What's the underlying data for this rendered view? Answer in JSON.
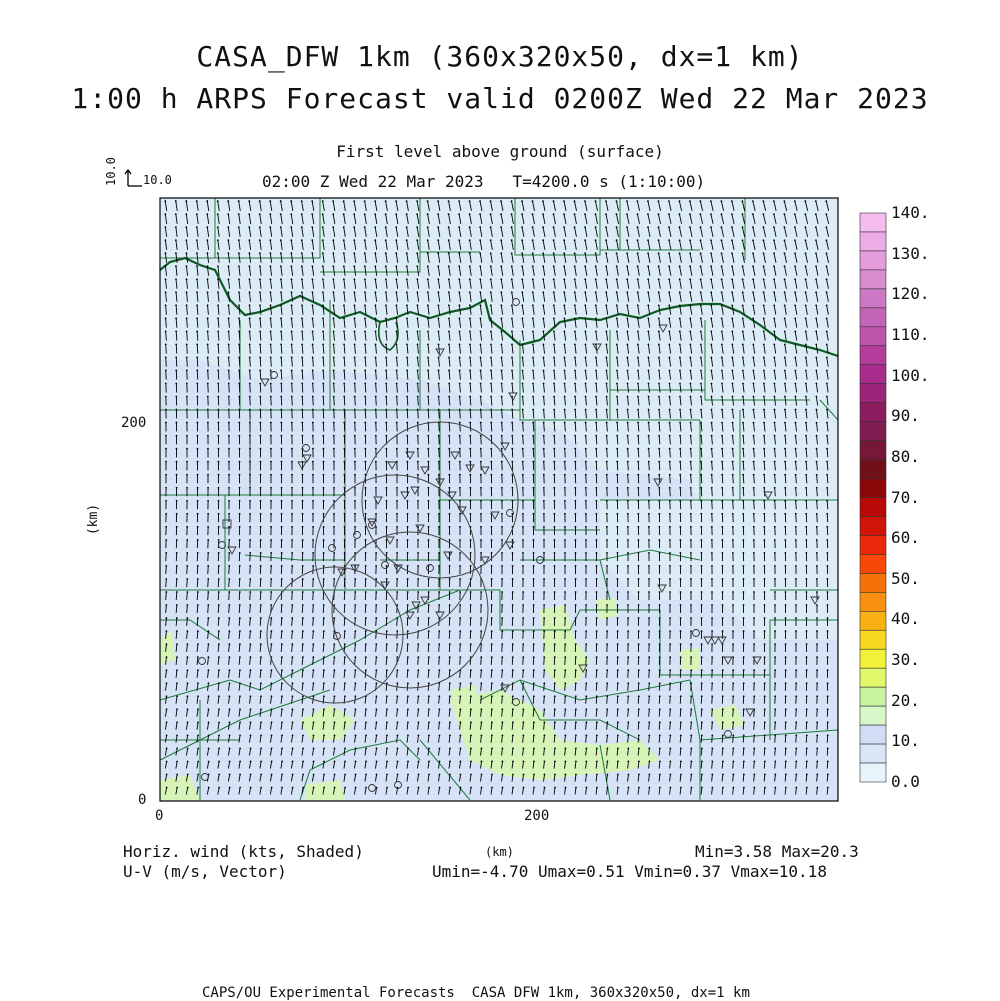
{
  "titles": {
    "line1": "CASA_DFW 1km (360x320x50, dx=1 km)",
    "line2": "1:00 h ARPS Forecast valid 0200Z Wed 22 Mar 2023",
    "level": "First level above ground (surface)",
    "time": "02:00 Z Wed 22 Mar 2023   T=4200.0 s (1:10:00)"
  },
  "reference_vector": {
    "vertical_label": "10.0",
    "horizontal_label": "10.0"
  },
  "axes": {
    "x_unit": "(km)",
    "y_unit": "(km)",
    "x_ticks": [
      "0",
      "200"
    ],
    "y_ticks": [
      "0",
      "200"
    ]
  },
  "footer": {
    "left1": "Horiz. wind (kts, Shaded)",
    "left2": "U-V (m/s, Vector)",
    "minmax": "Min=3.58 Max=20.3",
    "uv": "Umin=-4.70 Umax=0.51 Vmin=0.37 Vmax=10.18",
    "credit": "CAPS/OU Experimental Forecasts  CASA DFW 1km, 360x320x50, dx=1 km"
  },
  "colorbar": {
    "labels": [
      "0.0",
      "10.",
      "20.",
      "30.",
      "40.",
      "50.",
      "60.",
      "70.",
      "80.",
      "90.",
      "100.",
      "110.",
      "120.",
      "130.",
      "140."
    ],
    "colors": [
      "#e8f4fb",
      "#d8e6f6",
      "#d2dcf4",
      "#d8f7c8",
      "#c8f3a0",
      "#e0f86a",
      "#f2f23a",
      "#f8d820",
      "#f8b012",
      "#f89010",
      "#f87008",
      "#f84808",
      "#e82808",
      "#d01408",
      "#b80808",
      "#8c0808",
      "#701018",
      "#781838",
      "#801c50",
      "#8c1c60",
      "#9c2478",
      "#a82c8c",
      "#b43c9c",
      "#bc54ac",
      "#c464b8",
      "#cc78c4",
      "#d88cd0",
      "#e49cdc",
      "#eeace6",
      "#f6bcf0"
    ]
  },
  "map": {
    "background_color": "#d6e2f6",
    "light_region_color": "#dcecf6",
    "green_region_color": "#d6f3b8",
    "county_line_color": "#1f7a3a",
    "river_color": "#0d5a22",
    "circle_color": "#444444"
  }
}
